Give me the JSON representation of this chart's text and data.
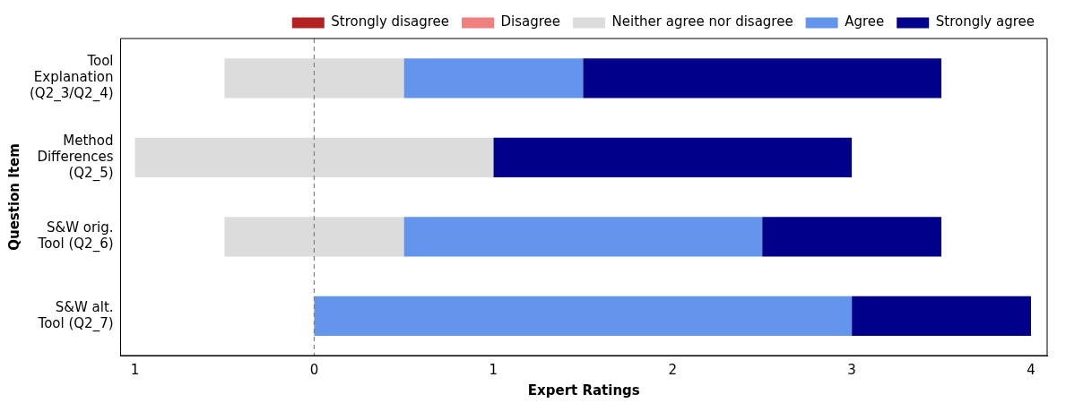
{
  "chart_data": {
    "type": "bar",
    "orientation": "horizontal",
    "categories": [
      "Tool\nExplanation\n(Q2_3/Q2_4)",
      "Method\nDifferences\n(Q2_5)",
      "S&W orig.\nTool (Q2_6)",
      "S&W alt.\nTool (Q2_7)"
    ],
    "series": [
      {
        "name": "Strongly disagree",
        "color": "#b22222",
        "values": [
          null,
          null,
          null,
          null
        ]
      },
      {
        "name": "Disagree",
        "color": "#f08080",
        "values": [
          null,
          null,
          null,
          null
        ]
      },
      {
        "name": "Neither agree nor disagree",
        "color": "#dcdcdc",
        "base": [
          -0.5,
          -1,
          -0.5,
          null
        ],
        "values": [
          1,
          2,
          1,
          null
        ]
      },
      {
        "name": "Agree",
        "color": "#6495ed",
        "base": [
          0.5,
          null,
          0.5,
          0
        ],
        "values": [
          1,
          null,
          2,
          3
        ]
      },
      {
        "name": "Strongly agree",
        "color": "#00008b",
        "base": [
          1.5,
          1,
          2.5,
          3
        ],
        "values": [
          2,
          2,
          1,
          1
        ]
      }
    ],
    "xlim": [
      -1.08,
      4.09
    ],
    "xticks": [
      {
        "value": -1,
        "label": "1"
      },
      0,
      1,
      2,
      3,
      4
    ],
    "xlabel": "Expert Ratings",
    "ylabel": "Question Item",
    "ref_lines": [
      {
        "axis": "x",
        "value": 0,
        "color": "#808080",
        "line_style": "dashed"
      }
    ],
    "legend": "top"
  }
}
